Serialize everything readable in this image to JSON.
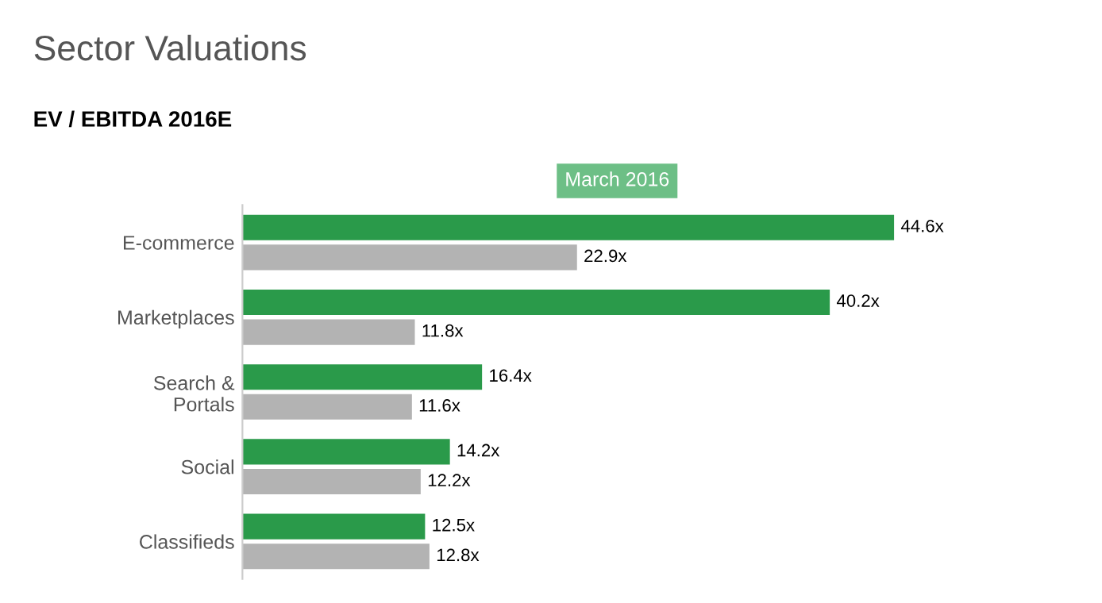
{
  "chart_data": {
    "type": "bar",
    "orientation": "horizontal",
    "title": "Sector Valuations",
    "subtitle": "EV / EBITDA 2016E",
    "annotations": [
      "March 2016"
    ],
    "categories": [
      "E-commerce",
      "Marketplaces",
      "Search &\nPortals",
      "Social",
      "Classifieds"
    ],
    "series": [
      {
        "color": "#2a9a4a",
        "values": [
          44.6,
          40.2,
          16.4,
          14.2,
          12.5
        ],
        "value_labels": [
          "44.6x",
          "40.2x",
          "16.4x",
          "14.2x",
          "12.5x"
        ]
      },
      {
        "color": "#b3b3b3",
        "values": [
          22.9,
          11.8,
          11.6,
          12.2,
          12.8
        ],
        "value_labels": [
          "22.9x",
          "11.8x",
          "11.6x",
          "12.2x",
          "12.8x"
        ]
      }
    ]
  }
}
